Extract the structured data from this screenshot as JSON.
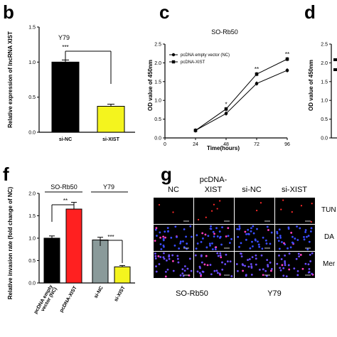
{
  "panel_labels": {
    "b": "b",
    "c": "c",
    "d": "d",
    "f": "f",
    "g": "g"
  },
  "chart_data": [
    {
      "panel": "b",
      "type": "bar",
      "title": "Y79",
      "ylabel": "Relative expression of lncRNA XIST",
      "ylim": [
        0,
        1.5
      ],
      "yticks": [
        "0.0",
        "0.5",
        "1.0",
        "1.5"
      ],
      "categories": [
        "si-NC",
        "si-XIST"
      ],
      "values": [
        1.0,
        0.37
      ],
      "errors": [
        0.03,
        0.03
      ],
      "colors": [
        "#000000",
        "#f4f41e"
      ],
      "significance": "***"
    },
    {
      "panel": "c",
      "type": "line",
      "title": "SO-Rb50",
      "xlabel": "Time(hours)",
      "ylabel": "OD value of 450nm",
      "xlim": [
        0,
        96
      ],
      "ylim": [
        0,
        2.5
      ],
      "xticks": [
        "0",
        "24",
        "48",
        "72",
        "96"
      ],
      "yticks": [
        "0.0",
        "0.5",
        "1.0",
        "1.5",
        "2.0",
        "2.5"
      ],
      "x": [
        24,
        48,
        72,
        96
      ],
      "series": [
        {
          "name": "pcDNA empty vector (NC)",
          "marker": "circle",
          "values": [
            0.2,
            0.65,
            1.45,
            1.8
          ]
        },
        {
          "name": "pcDNA-XIST",
          "marker": "square",
          "values": [
            0.2,
            0.77,
            1.7,
            2.1
          ]
        }
      ],
      "significance": [
        "",
        "*",
        "**",
        "**"
      ]
    },
    {
      "panel": "d",
      "type": "line",
      "ylabel": "OD value of 450nm",
      "yticks": [
        "2.5",
        "2.0",
        "1.5",
        "1.0",
        "0.5",
        "0.0"
      ]
    },
    {
      "panel": "f",
      "type": "bar",
      "ylabel": "Relative invasion rate (fold change of NC)",
      "ylim": [
        0,
        2.0
      ],
      "yticks": [
        "0.0",
        "0.5",
        "1.0",
        "1.5",
        "2.0"
      ],
      "groups": [
        "SO-Rb50",
        "Y79"
      ],
      "categories": [
        "pcDNA empty vector (NC)",
        "pcDNA-XIST",
        "si-NC",
        "si-XIST"
      ],
      "values": [
        1.0,
        1.65,
        0.96,
        0.36
      ],
      "errors": [
        0.05,
        0.15,
        0.06,
        0.03
      ],
      "colors": [
        "#000000",
        "#ff2020",
        "#8a9a9a",
        "#f4f41e"
      ],
      "significance": [
        "**",
        "***"
      ]
    }
  ],
  "panel_g": {
    "columns": [
      "NC",
      "pcDNA-\nXIST",
      "si-NC",
      "si-XIST"
    ],
    "rows": [
      "TUN",
      "DA",
      "Mer"
    ],
    "groups": [
      "SO-Rb50",
      "Y79"
    ]
  }
}
